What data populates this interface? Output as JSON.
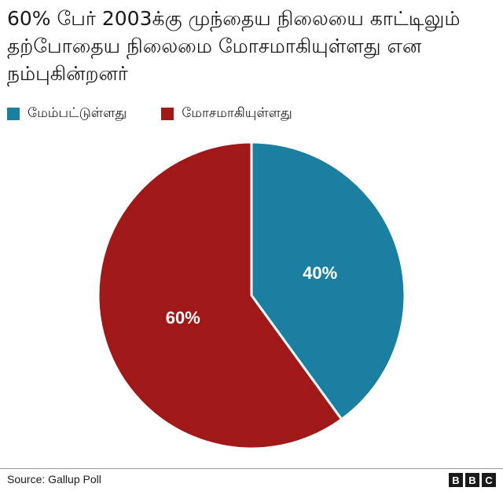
{
  "title": "60% பேர் 2003க்கு முந்தைய நிலையை காட்டிலும் தற்போதைய நிலைமை மோசமாகியுள்ளது என நம்புகின்றனர்",
  "source": "Source: Gallup Poll",
  "logo": [
    "B",
    "B",
    "C"
  ],
  "colors": {
    "improved": "#1a7fa0",
    "worse": "#a01818"
  },
  "chart_data": {
    "type": "pie",
    "title": "60% பேர் 2003க்கு முந்தைய நிலையை காட்டிலும் தற்போதைய நிலைமை மோசமாகியுள்ளது என நம்புகின்றனர்",
    "legend_position": "top-left",
    "slices": [
      {
        "label": "மேம்பட்டுள்ளது",
        "value": 40,
        "display": "40%",
        "color": "#1a7fa0"
      },
      {
        "label": "மோசமாகியுள்ளது",
        "value": 60,
        "display": "60%",
        "color": "#a01818"
      }
    ]
  }
}
